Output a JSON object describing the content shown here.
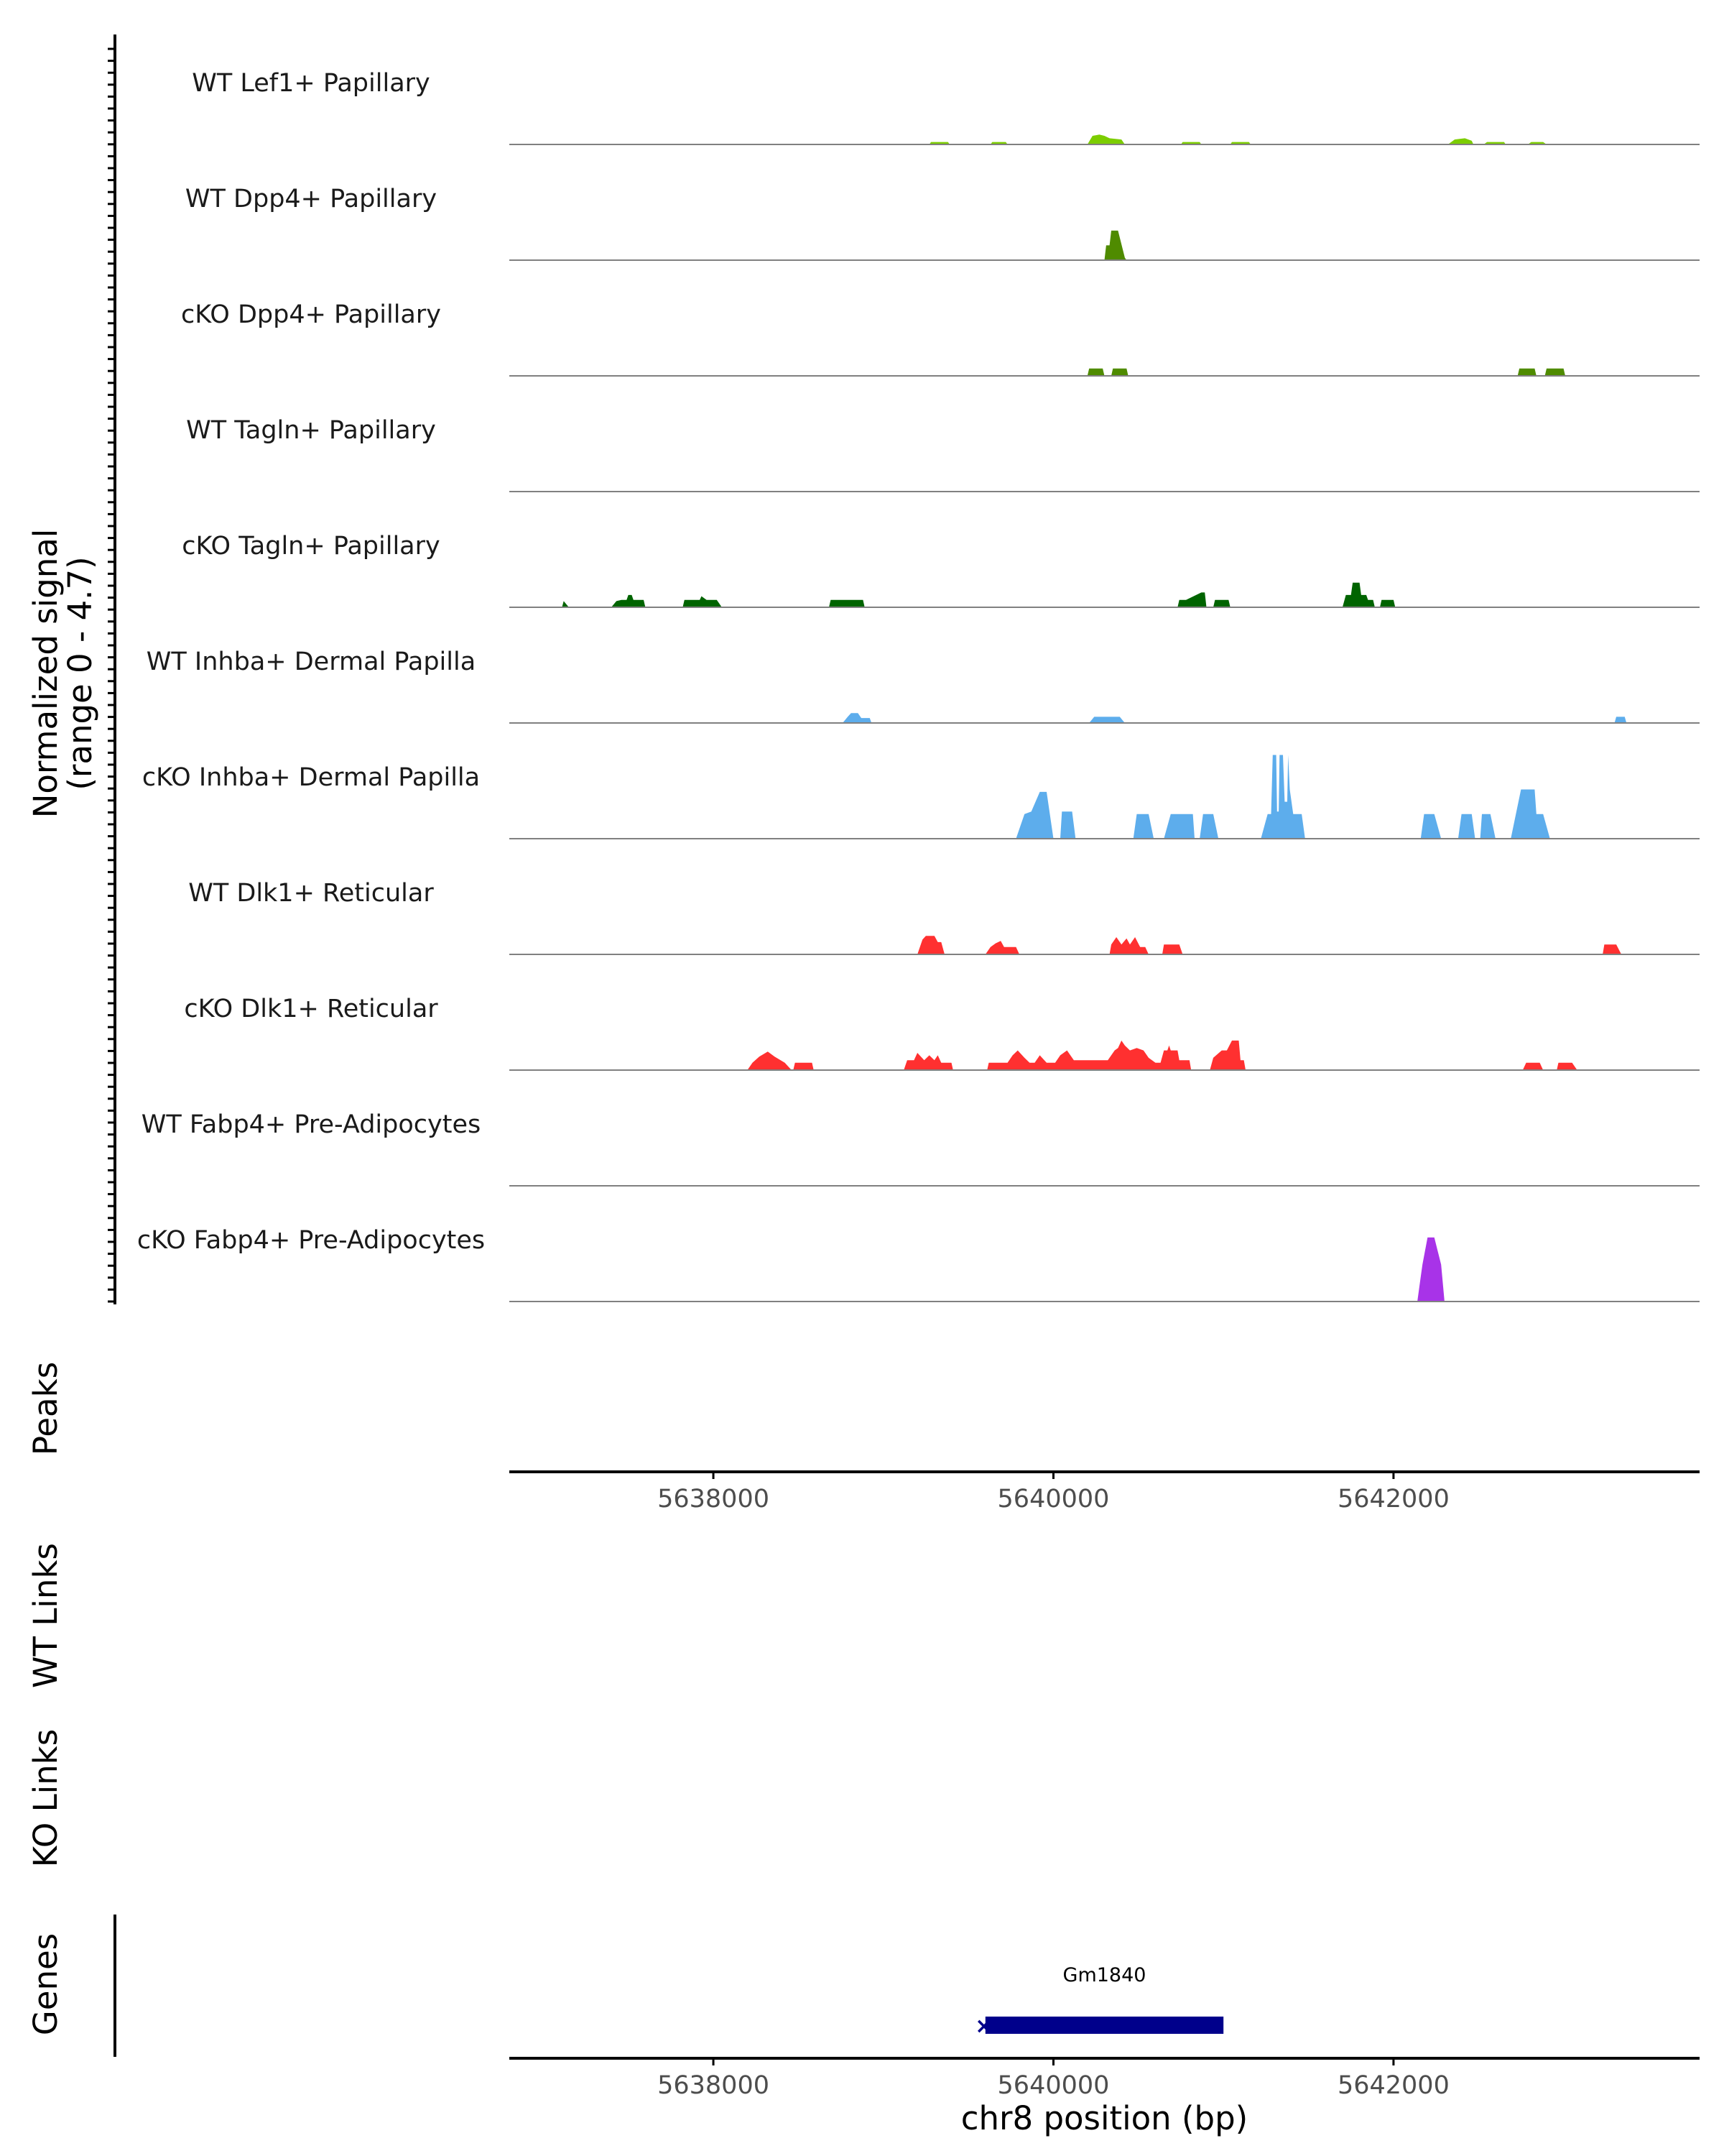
{
  "chart_data": {
    "type": "area",
    "chromosome": "chr8",
    "xlabel": "chr8 position (bp)",
    "xlim": [
      5636800,
      5643800
    ],
    "xticks": [
      5638000,
      5640000,
      5642000
    ],
    "signal_axis_title": [
      "Normalized signal",
      "(range 0 - 4.7)"
    ],
    "ylim": [
      0,
      4.7
    ],
    "colors": {
      "lef1": "#7CCD00",
      "dpp4": "#4F8B00",
      "tagln": "#006400",
      "inhba": "#5DADEC",
      "dlk1": "#FF3030",
      "fabp4": "#A833E8",
      "gene": "#00008B",
      "baseline": "#808080"
    },
    "series": [
      {
        "name": "WT Lef1+ Papillary",
        "color": "lef1",
        "points": [
          [
            5639270,
            0
          ],
          [
            5639280,
            0.1
          ],
          [
            5639380,
            0.1
          ],
          [
            5639390,
            0
          ],
          [
            5639630,
            0
          ],
          [
            5639640,
            0.1
          ],
          [
            5639720,
            0.1
          ],
          [
            5639730,
            0
          ],
          [
            5640200,
            0
          ],
          [
            5640230,
            0.35
          ],
          [
            5640270,
            0.4
          ],
          [
            5640300,
            0.35
          ],
          [
            5640330,
            0.25
          ],
          [
            5640400,
            0.2
          ],
          [
            5640420,
            0
          ],
          [
            5640750,
            0
          ],
          [
            5640760,
            0.1
          ],
          [
            5640860,
            0.1
          ],
          [
            5640870,
            0
          ],
          [
            5641040,
            0
          ],
          [
            5641050,
            0.1
          ],
          [
            5641150,
            0.1
          ],
          [
            5641160,
            0
          ],
          [
            5642320,
            0
          ],
          [
            5642360,
            0.2
          ],
          [
            5642420,
            0.25
          ],
          [
            5642460,
            0.15
          ],
          [
            5642470,
            0
          ],
          [
            5642530,
            0
          ],
          [
            5642550,
            0.1
          ],
          [
            5642650,
            0.1
          ],
          [
            5642660,
            0
          ],
          [
            5642790,
            0
          ],
          [
            5642810,
            0.1
          ],
          [
            5642880,
            0.1
          ],
          [
            5642900,
            0
          ]
        ]
      },
      {
        "name": "WT Dpp4+ Papillary",
        "color": "dpp4",
        "points": [
          [
            5640300,
            0
          ],
          [
            5640310,
            0.6
          ],
          [
            5640330,
            0.6
          ],
          [
            5640340,
            1.2
          ],
          [
            5640380,
            1.2
          ],
          [
            5640420,
            0.1
          ],
          [
            5640430,
            0
          ]
        ]
      },
      {
        "name": "cKO Dpp4+ Papillary",
        "color": "dpp4",
        "points": [
          [
            5640200,
            0
          ],
          [
            5640210,
            0.3
          ],
          [
            5640290,
            0.3
          ],
          [
            5640300,
            0
          ],
          [
            5640340,
            0
          ],
          [
            5640350,
            0.3
          ],
          [
            5640430,
            0.3
          ],
          [
            5640440,
            0
          ],
          [
            5642730,
            0
          ],
          [
            5642740,
            0.3
          ],
          [
            5642830,
            0.3
          ],
          [
            5642840,
            0
          ],
          [
            5642890,
            0
          ],
          [
            5642900,
            0.3
          ],
          [
            5643000,
            0.3
          ],
          [
            5643010,
            0
          ]
        ]
      },
      {
        "name": "WT Tagln+ Papillary",
        "color": "tagln",
        "points": []
      },
      {
        "name": "cKO Tagln+ Papillary",
        "color": "tagln",
        "points": [
          [
            5637110,
            0
          ],
          [
            5637120,
            0.25
          ],
          [
            5637150,
            0
          ],
          [
            5637400,
            0
          ],
          [
            5637430,
            0.25
          ],
          [
            5637460,
            0.3
          ],
          [
            5637490,
            0.3
          ],
          [
            5637500,
            0.5
          ],
          [
            5637520,
            0.5
          ],
          [
            5637530,
            0.3
          ],
          [
            5637590,
            0.3
          ],
          [
            5637600,
            0
          ],
          [
            5637820,
            0
          ],
          [
            5637830,
            0.3
          ],
          [
            5637920,
            0.3
          ],
          [
            5637930,
            0.45
          ],
          [
            5637960,
            0.3
          ],
          [
            5638020,
            0.3
          ],
          [
            5638050,
            0
          ],
          [
            5638680,
            0
          ],
          [
            5638690,
            0.3
          ],
          [
            5638880,
            0.3
          ],
          [
            5638890,
            0
          ],
          [
            5640730,
            0
          ],
          [
            5640740,
            0.3
          ],
          [
            5640780,
            0.3
          ],
          [
            5640870,
            0.6
          ],
          [
            5640890,
            0.6
          ],
          [
            5640900,
            0
          ],
          [
            5640940,
            0
          ],
          [
            5640950,
            0.3
          ],
          [
            5641030,
            0.3
          ],
          [
            5641040,
            0
          ],
          [
            5641700,
            0
          ],
          [
            5641720,
            0.5
          ],
          [
            5641750,
            0.5
          ],
          [
            5641760,
            1.0
          ],
          [
            5641800,
            1.0
          ],
          [
            5641810,
            0.5
          ],
          [
            5641840,
            0.5
          ],
          [
            5641850,
            0.3
          ],
          [
            5641880,
            0.3
          ],
          [
            5641890,
            0
          ],
          [
            5641920,
            0
          ],
          [
            5641930,
            0.3
          ],
          [
            5642000,
            0.3
          ],
          [
            5642010,
            0
          ]
        ]
      },
      {
        "name": "WT Inhba+ Dermal Papilla",
        "color": "inhba",
        "points": [
          [
            5638760,
            0
          ],
          [
            5638790,
            0.25
          ],
          [
            5638810,
            0.4
          ],
          [
            5638850,
            0.4
          ],
          [
            5638870,
            0.2
          ],
          [
            5638920,
            0.2
          ],
          [
            5638930,
            0
          ],
          [
            5640210,
            0
          ],
          [
            5640240,
            0.25
          ],
          [
            5640390,
            0.25
          ],
          [
            5640420,
            0
          ],
          [
            5643300,
            0
          ],
          [
            5643310,
            0.25
          ],
          [
            5643360,
            0.25
          ],
          [
            5643370,
            0
          ]
        ]
      },
      {
        "name": "cKO Inhba+ Dermal Papilla",
        "color": "inhba",
        "points": [
          [
            5639780,
            0
          ],
          [
            5639830,
            1.0
          ],
          [
            5639870,
            1.1
          ],
          [
            5639920,
            1.9
          ],
          [
            5639960,
            1.9
          ],
          [
            5640000,
            0
          ],
          [
            5640040,
            0
          ],
          [
            5640050,
            1.1
          ],
          [
            5640110,
            1.1
          ],
          [
            5640130,
            0
          ],
          [
            5640470,
            0
          ],
          [
            5640490,
            1.0
          ],
          [
            5640560,
            1.0
          ],
          [
            5640590,
            0
          ],
          [
            5640650,
            0
          ],
          [
            5640690,
            1.0
          ],
          [
            5640820,
            1.0
          ],
          [
            5640830,
            0
          ],
          [
            5640860,
            0
          ],
          [
            5640880,
            1.0
          ],
          [
            5640940,
            1.0
          ],
          [
            5640970,
            0
          ],
          [
            5641220,
            0
          ],
          [
            5641260,
            1.0
          ],
          [
            5641280,
            1.0
          ],
          [
            5641290,
            3.4
          ],
          [
            5641310,
            3.4
          ],
          [
            5641315,
            1.1
          ],
          [
            5641325,
            1.1
          ],
          [
            5641330,
            3.4
          ],
          [
            5641350,
            3.4
          ],
          [
            5641360,
            1.5
          ],
          [
            5641375,
            1.5
          ],
          [
            5641380,
            3.4
          ],
          [
            5641390,
            2.0
          ],
          [
            5641410,
            1.0
          ],
          [
            5641460,
            1.0
          ],
          [
            5641480,
            0
          ],
          [
            5642160,
            0
          ],
          [
            5642180,
            1.0
          ],
          [
            5642240,
            1.0
          ],
          [
            5642280,
            0
          ],
          [
            5642380,
            0
          ],
          [
            5642400,
            1.0
          ],
          [
            5642460,
            1.0
          ],
          [
            5642480,
            0
          ],
          [
            5642510,
            0
          ],
          [
            5642520,
            1.0
          ],
          [
            5642570,
            1.0
          ],
          [
            5642600,
            0
          ],
          [
            5642690,
            0
          ],
          [
            5642750,
            2.0
          ],
          [
            5642830,
            2.0
          ],
          [
            5642840,
            1.0
          ],
          [
            5642880,
            1.0
          ],
          [
            5642920,
            0
          ]
        ]
      },
      {
        "name": "WT Dlk1+ Reticular",
        "color": "dlk1",
        "points": [
          [
            5639200,
            0
          ],
          [
            5639230,
            0.6
          ],
          [
            5639250,
            0.75
          ],
          [
            5639300,
            0.75
          ],
          [
            5639320,
            0.5
          ],
          [
            5639340,
            0.5
          ],
          [
            5639360,
            0
          ],
          [
            5639600,
            0
          ],
          [
            5639630,
            0.3
          ],
          [
            5639660,
            0.45
          ],
          [
            5639690,
            0.55
          ],
          [
            5639710,
            0.3
          ],
          [
            5639780,
            0.3
          ],
          [
            5639800,
            0
          ],
          [
            5640330,
            0
          ],
          [
            5640340,
            0.4
          ],
          [
            5640370,
            0.7
          ],
          [
            5640400,
            0.4
          ],
          [
            5640430,
            0.65
          ],
          [
            5640450,
            0.4
          ],
          [
            5640480,
            0.7
          ],
          [
            5640510,
            0.3
          ],
          [
            5640540,
            0.3
          ],
          [
            5640560,
            0
          ],
          [
            5640640,
            0
          ],
          [
            5640650,
            0.4
          ],
          [
            5640740,
            0.4
          ],
          [
            5640760,
            0
          ],
          [
            5643230,
            0
          ],
          [
            5643240,
            0.4
          ],
          [
            5643310,
            0.4
          ],
          [
            5643340,
            0
          ]
        ]
      },
      {
        "name": "cKO Dlk1+ Reticular",
        "color": "dlk1",
        "points": [
          [
            5638200,
            0
          ],
          [
            5638230,
            0.3
          ],
          [
            5638270,
            0.55
          ],
          [
            5638320,
            0.75
          ],
          [
            5638360,
            0.55
          ],
          [
            5638420,
            0.3
          ],
          [
            5638460,
            0
          ],
          [
            5638470,
            0
          ],
          [
            5638480,
            0.3
          ],
          [
            5638580,
            0.3
          ],
          [
            5638590,
            0
          ],
          [
            5639120,
            0
          ],
          [
            5639140,
            0.4
          ],
          [
            5639180,
            0.4
          ],
          [
            5639200,
            0.7
          ],
          [
            5639240,
            0.4
          ],
          [
            5639270,
            0.6
          ],
          [
            5639300,
            0.4
          ],
          [
            5639320,
            0.6
          ],
          [
            5639340,
            0.3
          ],
          [
            5639400,
            0.3
          ],
          [
            5639410,
            0
          ],
          [
            5639610,
            0
          ],
          [
            5639620,
            0.3
          ],
          [
            5639730,
            0.3
          ],
          [
            5639760,
            0.6
          ],
          [
            5639790,
            0.8
          ],
          [
            5639830,
            0.5
          ],
          [
            5639860,
            0.3
          ],
          [
            5639890,
            0.3
          ],
          [
            5639920,
            0.6
          ],
          [
            5639960,
            0.3
          ],
          [
            5640010,
            0.3
          ],
          [
            5640040,
            0.6
          ],
          [
            5640080,
            0.8
          ],
          [
            5640120,
            0.4
          ],
          [
            5640320,
            0.4
          ],
          [
            5640360,
            0.8
          ],
          [
            5640380,
            0.9
          ],
          [
            5640400,
            1.2
          ],
          [
            5640420,
            1.0
          ],
          [
            5640450,
            0.8
          ],
          [
            5640490,
            0.9
          ],
          [
            5640530,
            0.8
          ],
          [
            5640560,
            0.5
          ],
          [
            5640600,
            0.3
          ],
          [
            5640630,
            0.3
          ],
          [
            5640650,
            0.8
          ],
          [
            5640670,
            0.8
          ],
          [
            5640680,
            1.0
          ],
          [
            5640690,
            0.8
          ],
          [
            5640730,
            0.8
          ],
          [
            5640740,
            0.4
          ],
          [
            5640800,
            0.4
          ],
          [
            5640810,
            0
          ],
          [
            5640920,
            0
          ],
          [
            5640940,
            0.5
          ],
          [
            5640990,
            0.8
          ],
          [
            5641020,
            0.8
          ],
          [
            5641050,
            1.2
          ],
          [
            5641090,
            1.2
          ],
          [
            5641100,
            0.4
          ],
          [
            5641120,
            0.4
          ],
          [
            5641130,
            0
          ],
          [
            5642760,
            0
          ],
          [
            5642780,
            0.3
          ],
          [
            5642860,
            0.3
          ],
          [
            5642880,
            0
          ],
          [
            5642960,
            0
          ],
          [
            5642970,
            0.3
          ],
          [
            5643050,
            0.3
          ],
          [
            5643080,
            0
          ]
        ]
      },
      {
        "name": "WT Fabp4+ Pre-Adipocytes",
        "color": "fabp4",
        "points": []
      },
      {
        "name": "cKO Fabp4+ Pre-Adipocytes",
        "color": "fabp4",
        "points": [
          [
            5642140,
            0
          ],
          [
            5642160,
            1.0
          ],
          [
            5642170,
            1.5
          ],
          [
            5642200,
            2.6
          ],
          [
            5642240,
            2.6
          ],
          [
            5642280,
            1.5
          ],
          [
            5642300,
            0
          ]
        ]
      }
    ],
    "panels": {
      "peaks": "Peaks",
      "wt_links": "WT Links",
      "ko_links": "KO Links",
      "genes": "Genes"
    },
    "genes": [
      {
        "name": "Gm1840",
        "start": 5639600,
        "end": 5641000,
        "strand": "-",
        "strand_marker": "×"
      }
    ]
  }
}
